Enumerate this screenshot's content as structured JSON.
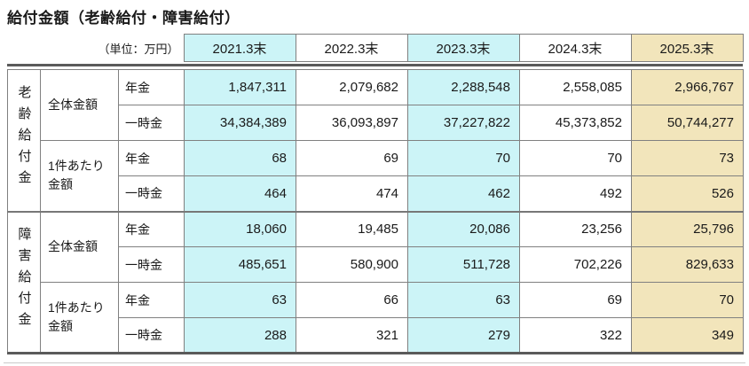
{
  "title": "給付金額（老齢給付・障害給付）",
  "unit_label": "（単位：万円）",
  "columns": [
    "2021.3末",
    "2022.3末",
    "2023.3末",
    "2024.3末",
    "2025.3末"
  ],
  "colors": {
    "highlight_cyan": "#ccf4f7",
    "highlight_tan": "#f2e5bb",
    "grid_border": "#808080",
    "thick_rule": "#5a5a5a"
  },
  "sections": [
    {
      "name": "老齢給付金",
      "groups": [
        {
          "name": "全体金額",
          "rows": [
            {
              "label": "年金",
              "values": [
                "1,847,311",
                "2,079,682",
                "2,288,548",
                "2,558,085",
                "2,966,767"
              ]
            },
            {
              "label": "一時金",
              "values": [
                "34,384,389",
                "36,093,897",
                "37,227,822",
                "45,373,852",
                "50,744,277"
              ]
            }
          ]
        },
        {
          "name": "1件あたり金額",
          "rows": [
            {
              "label": "年金",
              "values": [
                "68",
                "69",
                "70",
                "70",
                "73"
              ]
            },
            {
              "label": "一時金",
              "values": [
                "464",
                "474",
                "462",
                "492",
                "526"
              ]
            }
          ]
        }
      ]
    },
    {
      "name": "障害給付金",
      "groups": [
        {
          "name": "全体金額",
          "rows": [
            {
              "label": "年金",
              "values": [
                "18,060",
                "19,485",
                "20,086",
                "23,256",
                "25,796"
              ]
            },
            {
              "label": "一時金",
              "values": [
                "485,651",
                "580,900",
                "511,728",
                "702,226",
                "829,633"
              ]
            }
          ]
        },
        {
          "name": "1件あたり金額",
          "rows": [
            {
              "label": "年金",
              "values": [
                "63",
                "66",
                "63",
                "69",
                "70"
              ]
            },
            {
              "label": "一時金",
              "values": [
                "288",
                "321",
                "279",
                "322",
                "349"
              ]
            }
          ]
        }
      ]
    }
  ],
  "chart_data": {
    "type": "table",
    "title": "給付金額（老齢給付・障害給付）",
    "unit": "万円",
    "columns": [
      "2021.3末",
      "2022.3末",
      "2023.3末",
      "2024.3末",
      "2025.3末"
    ],
    "rows": [
      {
        "section": "老齢給付金",
        "group": "全体金額",
        "item": "年金",
        "values": [
          1847311,
          2079682,
          2288548,
          2558085,
          2966767
        ]
      },
      {
        "section": "老齢給付金",
        "group": "全体金額",
        "item": "一時金",
        "values": [
          34384389,
          36093897,
          37227822,
          45373852,
          50744277
        ]
      },
      {
        "section": "老齢給付金",
        "group": "1件あたり金額",
        "item": "年金",
        "values": [
          68,
          69,
          70,
          70,
          73
        ]
      },
      {
        "section": "老齢給付金",
        "group": "1件あたり金額",
        "item": "一時金",
        "values": [
          464,
          474,
          462,
          492,
          526
        ]
      },
      {
        "section": "障害給付金",
        "group": "全体金額",
        "item": "年金",
        "values": [
          18060,
          19485,
          20086,
          23256,
          25796
        ]
      },
      {
        "section": "障害給付金",
        "group": "全体金額",
        "item": "一時金",
        "values": [
          485651,
          580900,
          511728,
          702226,
          829633
        ]
      },
      {
        "section": "障害給付金",
        "group": "1件あたり金額",
        "item": "年金",
        "values": [
          63,
          66,
          63,
          69,
          70
        ]
      },
      {
        "section": "障害給付金",
        "group": "1件あたり金額",
        "item": "一時金",
        "values": [
          288,
          321,
          279,
          322,
          349
        ]
      }
    ]
  }
}
